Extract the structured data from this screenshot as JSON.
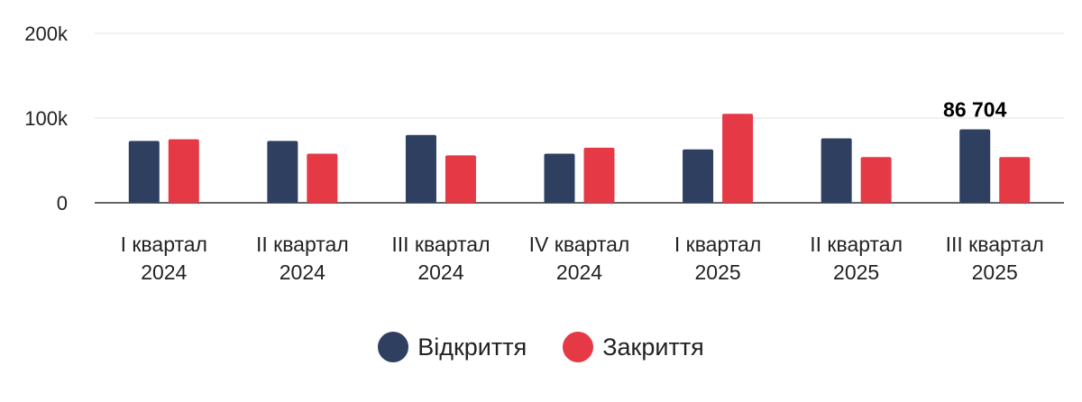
{
  "chart_data": {
    "type": "bar",
    "categories": [
      [
        "I квартал",
        "2024"
      ],
      [
        "II квартал",
        "2024"
      ],
      [
        "III квартал",
        "2024"
      ],
      [
        "IV квартал",
        "2024"
      ],
      [
        "I квартал",
        "2025"
      ],
      [
        "II квартал",
        "2025"
      ],
      [
        "III квартал",
        "2025"
      ]
    ],
    "series": [
      {
        "name": "Відкриття",
        "color": "#2e3f5f",
        "values": [
          73000,
          73000,
          80000,
          58000,
          63000,
          76000,
          86704
        ]
      },
      {
        "name": "Закриття",
        "color": "#e63946",
        "values": [
          75000,
          58000,
          56000,
          65000,
          105000,
          54000,
          54000
        ]
      }
    ],
    "yticks": [
      "0",
      "100k",
      "200k"
    ],
    "ytick_values": [
      0,
      100000,
      200000
    ],
    "ylim": [
      0,
      200000
    ],
    "grid": true,
    "legend_position": "bottom-center",
    "data_labels": [
      {
        "series": 0,
        "index": 6,
        "text": "86 704"
      }
    ]
  }
}
